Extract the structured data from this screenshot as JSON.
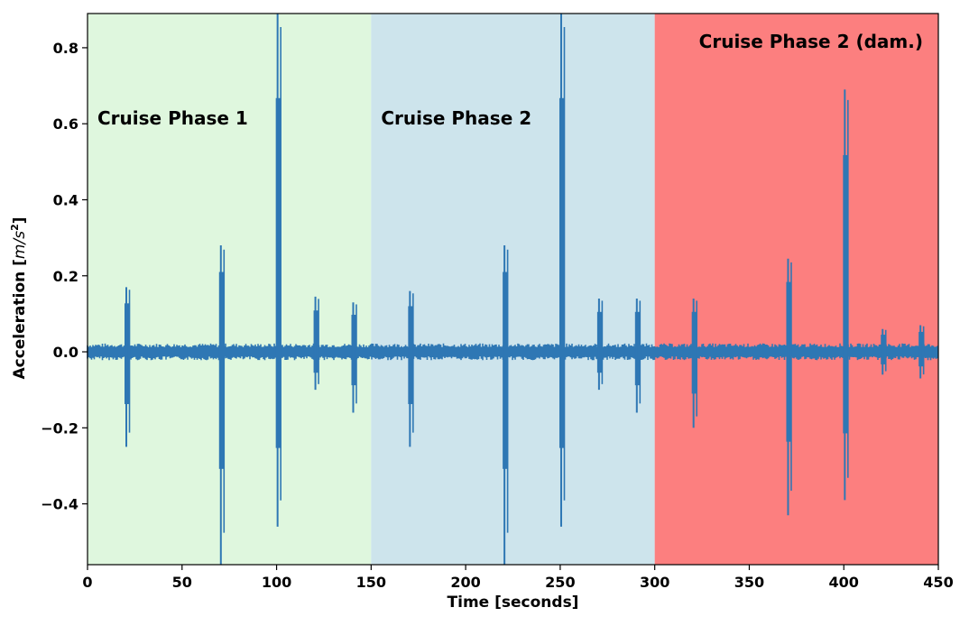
{
  "chart_data": {
    "type": "line",
    "title": "",
    "xlabel": "Time [seconds]",
    "ylabel_text": "Acceleration [",
    "ylabel_unit": "m/s",
    "ylabel_power": "2",
    "ylabel_close": "]",
    "xlim": [
      0,
      450
    ],
    "ylim": [
      -0.56,
      0.89
    ],
    "grid": false,
    "xticks": [
      0,
      50,
      100,
      150,
      200,
      250,
      300,
      350,
      400,
      450
    ],
    "xtick_labels": [
      "0",
      "50",
      "100",
      "150",
      "200",
      "250",
      "300",
      "350",
      "400",
      "450"
    ],
    "yticks": [
      -0.4,
      -0.2,
      0.0,
      0.2,
      0.4,
      0.6,
      0.8
    ],
    "ytick_labels": [
      "−0.4",
      "−0.2",
      "0.0",
      "0.2",
      "0.4",
      "0.6",
      "0.8"
    ],
    "phases": [
      {
        "label": "Cruise Phase 1",
        "start": 0,
        "end": 150,
        "color": "#dff7de"
      },
      {
        "label": "Cruise Phase 2",
        "start": 150,
        "end": 300,
        "color": "#cde4ec"
      },
      {
        "label": "Cruise Phase 2 (dam.)",
        "start": 300,
        "end": 450,
        "color": "#fc7f7f"
      }
    ],
    "series": [
      {
        "color": "#2e77b4",
        "noise_amplitude": 0.022,
        "bursts": [
          {
            "t": 21,
            "max": 0.17,
            "min": -0.25
          },
          {
            "t": 71,
            "max": 0.28,
            "min": -0.56
          },
          {
            "t": 101,
            "max": 0.89,
            "min": -0.46
          },
          {
            "t": 121,
            "max": 0.145,
            "min": -0.1
          },
          {
            "t": 141,
            "max": 0.13,
            "min": -0.16
          },
          {
            "t": 171,
            "max": 0.16,
            "min": -0.25
          },
          {
            "t": 221,
            "max": 0.28,
            "min": -0.56
          },
          {
            "t": 251,
            "max": 0.89,
            "min": -0.46
          },
          {
            "t": 271,
            "max": 0.14,
            "min": -0.1
          },
          {
            "t": 291,
            "max": 0.14,
            "min": -0.16
          },
          {
            "t": 321,
            "max": 0.14,
            "min": -0.2
          },
          {
            "t": 371,
            "max": 0.245,
            "min": -0.43
          },
          {
            "t": 401,
            "max": 0.69,
            "min": -0.39
          },
          {
            "t": 421,
            "max": 0.06,
            "min": -0.06
          },
          {
            "t": 441,
            "max": 0.07,
            "min": -0.07
          }
        ]
      }
    ]
  }
}
